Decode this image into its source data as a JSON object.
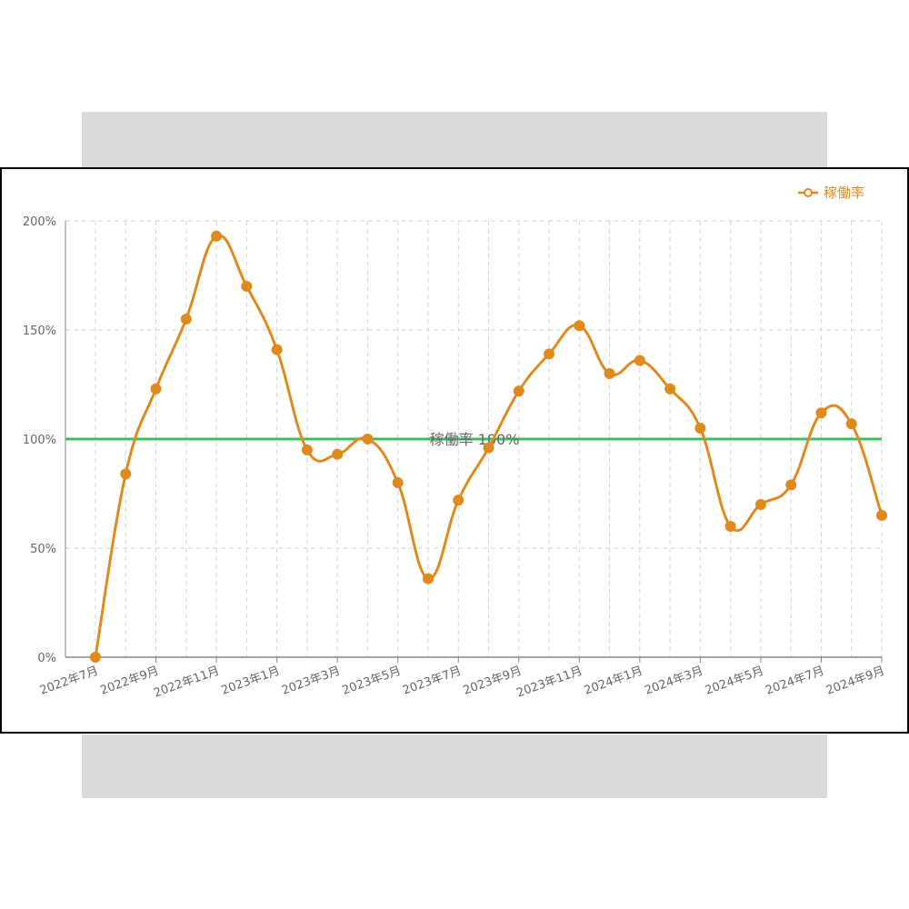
{
  "chart_data": {
    "type": "line",
    "legend": {
      "label": "稼働率",
      "position": "top-right"
    },
    "colors": {
      "line": "#e08a1e",
      "reference": "#3cc15a",
      "grid": "#d6d6d6"
    },
    "x": [
      "2022年7月",
      "2022年8月",
      "2022年9月",
      "2022年10月",
      "2022年11月",
      "2022年12月",
      "2023年1月",
      "2023年2月",
      "2023年3月",
      "2023年4月",
      "2023年5月",
      "2023年6月",
      "2023年7月",
      "2023年8月",
      "2023年9月",
      "2023年10月",
      "2023年11月",
      "2023年12月",
      "2024年1月",
      "2024年2月",
      "2024年3月",
      "2024年4月",
      "2024年5月",
      "2024年6月",
      "2024年7月",
      "2024年8月",
      "2024年9月"
    ],
    "x_tick_labels": [
      "2022年7月",
      "2022年9月",
      "2022年11月",
      "2023年1月",
      "2023年3月",
      "2023年5月",
      "2023年7月",
      "2023年9月",
      "2023年11月",
      "2024年1月",
      "2024年3月",
      "2024年5月",
      "2024年7月",
      "2024年9月"
    ],
    "series": [
      {
        "name": "稼働率",
        "values": [
          0,
          84,
          123,
          155,
          193,
          170,
          141,
          95,
          93,
          100,
          80,
          36,
          72,
          96,
          122,
          139,
          152,
          130,
          136,
          123,
          105,
          60,
          70,
          79,
          112,
          107,
          65
        ]
      }
    ],
    "y_ticks": [
      "0%",
      "50%",
      "100%",
      "150%",
      "200%"
    ],
    "ylim": [
      0,
      200
    ],
    "grid": true,
    "reference_line": {
      "value": 100,
      "label": "稼働率 100%"
    }
  }
}
